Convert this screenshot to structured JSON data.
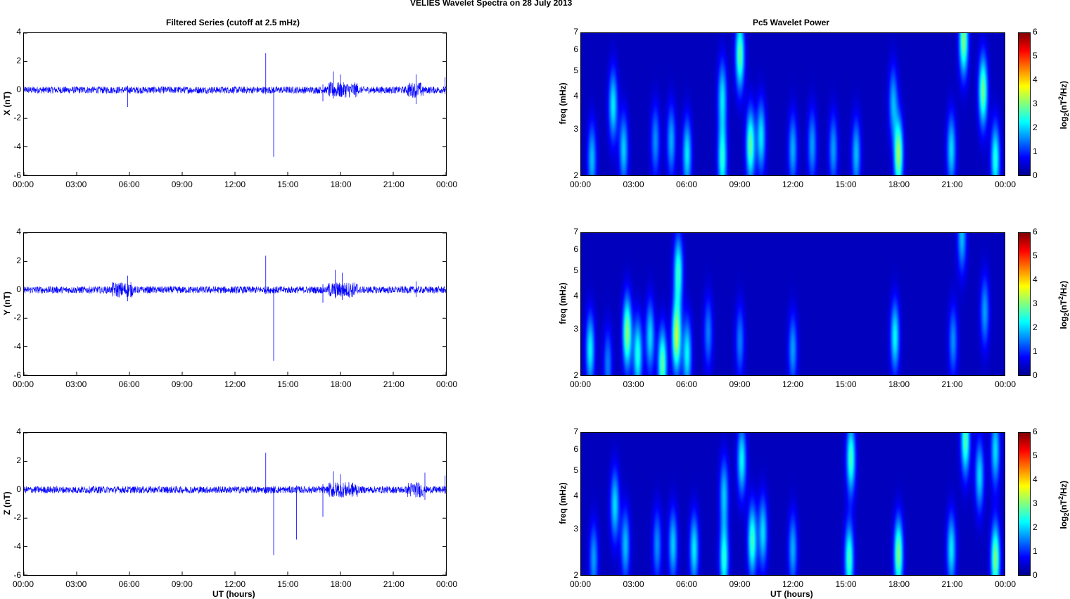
{
  "figure_title": "VELIES Wavelet Spectra on 28 July      2013",
  "left_title": "Filtered Series (cutoff at 2.5 mHz)",
  "right_title": "Pc5 Wavelet Power",
  "xlabel": "UT (hours)",
  "freq_label": "freq (mHz)",
  "cbar_label_main": "log",
  "cbar_label_sub": "2",
  "cbar_label_rest": "(nT",
  "cbar_label_sup": "2",
  "cbar_label_end": "/Hz)",
  "colors": {
    "series": "#0000ff",
    "background": "#00008f"
  },
  "chart_data": [
    {
      "type": "line",
      "title": "Filtered Series (cutoff at 2.5 mHz)",
      "ylabel": "X (nT)",
      "xlabel": "",
      "ylim": [
        -6,
        4
      ],
      "yticks": [
        "4",
        "2",
        "0",
        "-2",
        "-4",
        "-6"
      ],
      "xticks": [
        "00:00",
        "03:00",
        "06:00",
        "09:00",
        "12:00",
        "15:00",
        "18:00",
        "21:00",
        "00:00"
      ],
      "noise_amplitude_nT": 0.25,
      "spikes": [
        {
          "t_hours": 5.9,
          "min": -1.2,
          "max": 0.3
        },
        {
          "t_hours": 13.75,
          "min": -0.3,
          "max": 2.6
        },
        {
          "t_hours": 14.2,
          "min": -4.7,
          "max": 0.2
        },
        {
          "t_hours": 17.0,
          "min": -0.8,
          "max": 0.4
        },
        {
          "t_hours": 17.6,
          "min": -0.6,
          "max": 1.3
        },
        {
          "t_hours": 18.0,
          "min": -0.5,
          "max": 1.1
        },
        {
          "t_hours": 22.3,
          "min": -1.0,
          "max": 1.1
        },
        {
          "t_hours": 23.95,
          "min": -0.3,
          "max": 0.9
        }
      ],
      "active_intervals": [
        {
          "start": 17.3,
          "end": 19.0
        },
        {
          "start": 21.8,
          "end": 22.7
        }
      ]
    },
    {
      "type": "heatmap",
      "title": "Pc5 Wavelet Power",
      "ylabel": "freq (mHz)",
      "xlabel": "",
      "yscale": "log",
      "ylim": [
        2,
        7
      ],
      "yticks": [
        "7",
        "6",
        "5",
        "4",
        "3",
        "2"
      ],
      "xticks": [
        "00:00",
        "03:00",
        "06:00",
        "09:00",
        "12:00",
        "15:00",
        "18:00",
        "21:00",
        "00:00"
      ],
      "colorbar": {
        "label": "log2(nT2/Hz)",
        "ticks": [
          "6",
          "5",
          "4",
          "3",
          "2",
          "1",
          "0"
        ],
        "range": [
          0,
          6
        ]
      },
      "blobs": [
        {
          "t": 0.6,
          "f": 2.3,
          "p": 1.6
        },
        {
          "t": 1.8,
          "f": 3.7,
          "p": 1.9
        },
        {
          "t": 2.4,
          "f": 2.5,
          "p": 1.7
        },
        {
          "t": 4.2,
          "f": 2.7,
          "p": 1.3
        },
        {
          "t": 5.1,
          "f": 2.7,
          "p": 1.5
        },
        {
          "t": 6.0,
          "f": 2.4,
          "p": 1.9
        },
        {
          "t": 8.0,
          "f": 2.3,
          "p": 2.2
        },
        {
          "t": 8.0,
          "f": 4.0,
          "p": 1.8
        },
        {
          "t": 9.0,
          "f": 5.8,
          "p": 2.6
        },
        {
          "t": 9.6,
          "f": 2.6,
          "p": 2.6
        },
        {
          "t": 10.2,
          "f": 2.8,
          "p": 1.9
        },
        {
          "t": 12.0,
          "f": 2.5,
          "p": 1.5
        },
        {
          "t": 13.1,
          "f": 2.6,
          "p": 1.4
        },
        {
          "t": 14.3,
          "f": 2.5,
          "p": 1.4
        },
        {
          "t": 15.6,
          "f": 2.4,
          "p": 1.6
        },
        {
          "t": 17.7,
          "f": 3.8,
          "p": 1.5
        },
        {
          "t": 18.0,
          "f": 2.4,
          "p": 3.0
        },
        {
          "t": 21.0,
          "f": 2.5,
          "p": 1.8
        },
        {
          "t": 21.7,
          "f": 6.6,
          "p": 2.8
        },
        {
          "t": 22.8,
          "f": 4.2,
          "p": 2.7
        },
        {
          "t": 23.5,
          "f": 2.3,
          "p": 2.2
        }
      ]
    },
    {
      "type": "line",
      "title": "",
      "ylabel": "Y (nT)",
      "xlabel": "",
      "ylim": [
        -6,
        4
      ],
      "yticks": [
        "4",
        "2",
        "0",
        "-2",
        "-4",
        "-6"
      ],
      "xticks": [
        "00:00",
        "03:00",
        "06:00",
        "09:00",
        "12:00",
        "15:00",
        "18:00",
        "21:00",
        "00:00"
      ],
      "noise_amplitude_nT": 0.25,
      "spikes": [
        {
          "t_hours": 5.9,
          "min": -0.8,
          "max": 1.0
        },
        {
          "t_hours": 13.75,
          "min": -0.3,
          "max": 2.4
        },
        {
          "t_hours": 14.2,
          "min": -5.0,
          "max": 0.2
        },
        {
          "t_hours": 17.0,
          "min": -0.9,
          "max": 0.4
        },
        {
          "t_hours": 17.7,
          "min": -0.6,
          "max": 1.4
        },
        {
          "t_hours": 18.1,
          "min": -0.7,
          "max": 1.2
        },
        {
          "t_hours": 22.3,
          "min": -0.5,
          "max": 0.6
        }
      ],
      "active_intervals": [
        {
          "start": 5.0,
          "end": 6.2
        },
        {
          "start": 17.3,
          "end": 19.0
        }
      ]
    },
    {
      "type": "heatmap",
      "title": "",
      "ylabel": "freq (mHz)",
      "xlabel": "",
      "yscale": "log",
      "ylim": [
        2,
        7
      ],
      "yticks": [
        "7",
        "6",
        "5",
        "4",
        "3",
        "2"
      ],
      "xticks": [
        "00:00",
        "03:00",
        "06:00",
        "09:00",
        "12:00",
        "15:00",
        "18:00",
        "21:00",
        "00:00"
      ],
      "colorbar": {
        "label": "log2(nT2/Hz)",
        "ticks": [
          "6",
          "5",
          "4",
          "3",
          "2",
          "1",
          "0"
        ],
        "range": [
          0,
          6
        ]
      },
      "blobs": [
        {
          "t": 0.5,
          "f": 2.5,
          "p": 2.0
        },
        {
          "t": 1.5,
          "f": 2.2,
          "p": 1.2
        },
        {
          "t": 2.6,
          "f": 2.9,
          "p": 2.9
        },
        {
          "t": 3.2,
          "f": 2.4,
          "p": 2.2
        },
        {
          "t": 3.9,
          "f": 2.8,
          "p": 1.8
        },
        {
          "t": 4.6,
          "f": 2.2,
          "p": 2.6
        },
        {
          "t": 5.4,
          "f": 2.8,
          "p": 3.2
        },
        {
          "t": 5.5,
          "f": 5.0,
          "p": 2.3
        },
        {
          "t": 6.0,
          "f": 2.4,
          "p": 2.0
        },
        {
          "t": 7.2,
          "f": 2.9,
          "p": 1.2
        },
        {
          "t": 9.0,
          "f": 2.7,
          "p": 1.2
        },
        {
          "t": 12.0,
          "f": 2.5,
          "p": 1.4
        },
        {
          "t": 17.8,
          "f": 2.8,
          "p": 2.0
        },
        {
          "t": 21.1,
          "f": 2.7,
          "p": 1.3
        },
        {
          "t": 22.9,
          "f": 3.5,
          "p": 1.4
        },
        {
          "t": 21.6,
          "f": 6.8,
          "p": 1.6
        }
      ]
    },
    {
      "type": "line",
      "title": "",
      "ylabel": "Z (nT)",
      "xlabel": "UT (hours)",
      "ylim": [
        -6,
        4
      ],
      "yticks": [
        "4",
        "2",
        "0",
        "-2",
        "-4",
        "-6"
      ],
      "xticks": [
        "00:00",
        "03:00",
        "06:00",
        "09:00",
        "12:00",
        "15:00",
        "18:00",
        "21:00",
        "00:00"
      ],
      "noise_amplitude_nT": 0.25,
      "spikes": [
        {
          "t_hours": 13.75,
          "min": -0.3,
          "max": 2.6
        },
        {
          "t_hours": 14.2,
          "min": -4.6,
          "max": 0.2
        },
        {
          "t_hours": 15.5,
          "min": -3.5,
          "max": 0.3
        },
        {
          "t_hours": 17.0,
          "min": -1.9,
          "max": 0.4
        },
        {
          "t_hours": 17.6,
          "min": -0.5,
          "max": 1.3
        },
        {
          "t_hours": 18.0,
          "min": -0.5,
          "max": 1.1
        },
        {
          "t_hours": 22.8,
          "min": -0.7,
          "max": 1.2
        },
        {
          "t_hours": 23.95,
          "min": -0.3,
          "max": 1.0
        }
      ],
      "active_intervals": [
        {
          "start": 17.3,
          "end": 19.0
        },
        {
          "start": 21.8,
          "end": 22.7
        }
      ]
    },
    {
      "type": "heatmap",
      "title": "",
      "ylabel": "freq (mHz)",
      "xlabel": "UT (hours)",
      "yscale": "log",
      "ylim": [
        2,
        7
      ],
      "yticks": [
        "7",
        "6",
        "5",
        "4",
        "3",
        "2"
      ],
      "xticks": [
        "00:00",
        "03:00",
        "06:00",
        "09:00",
        "12:00",
        "15:00",
        "18:00",
        "21:00",
        "00:00"
      ],
      "colorbar": {
        "label": "log2(nT2/Hz)",
        "ticks": [
          "6",
          "5",
          "4",
          "3",
          "2",
          "1",
          "0"
        ],
        "range": [
          0,
          6
        ]
      },
      "blobs": [
        {
          "t": 0.7,
          "f": 2.3,
          "p": 1.4
        },
        {
          "t": 1.9,
          "f": 3.7,
          "p": 1.8
        },
        {
          "t": 2.5,
          "f": 2.6,
          "p": 1.6
        },
        {
          "t": 4.3,
          "f": 2.6,
          "p": 1.3
        },
        {
          "t": 5.2,
          "f": 2.6,
          "p": 1.7
        },
        {
          "t": 6.4,
          "f": 2.5,
          "p": 1.9
        },
        {
          "t": 8.1,
          "f": 2.3,
          "p": 2.2
        },
        {
          "t": 8.1,
          "f": 4.1,
          "p": 1.6
        },
        {
          "t": 9.1,
          "f": 5.5,
          "p": 2.0
        },
        {
          "t": 9.7,
          "f": 2.7,
          "p": 2.4
        },
        {
          "t": 10.3,
          "f": 2.9,
          "p": 1.8
        },
        {
          "t": 12.0,
          "f": 2.5,
          "p": 1.5
        },
        {
          "t": 15.2,
          "f": 2.3,
          "p": 2.4
        },
        {
          "t": 15.3,
          "f": 5.6,
          "p": 2.4
        },
        {
          "t": 18.0,
          "f": 2.4,
          "p": 2.8
        },
        {
          "t": 21.0,
          "f": 2.5,
          "p": 1.9
        },
        {
          "t": 21.8,
          "f": 6.6,
          "p": 2.5
        },
        {
          "t": 22.6,
          "f": 4.8,
          "p": 1.8
        },
        {
          "t": 23.5,
          "f": 2.3,
          "p": 2.8
        },
        {
          "t": 23.5,
          "f": 6.0,
          "p": 1.8
        }
      ]
    }
  ]
}
